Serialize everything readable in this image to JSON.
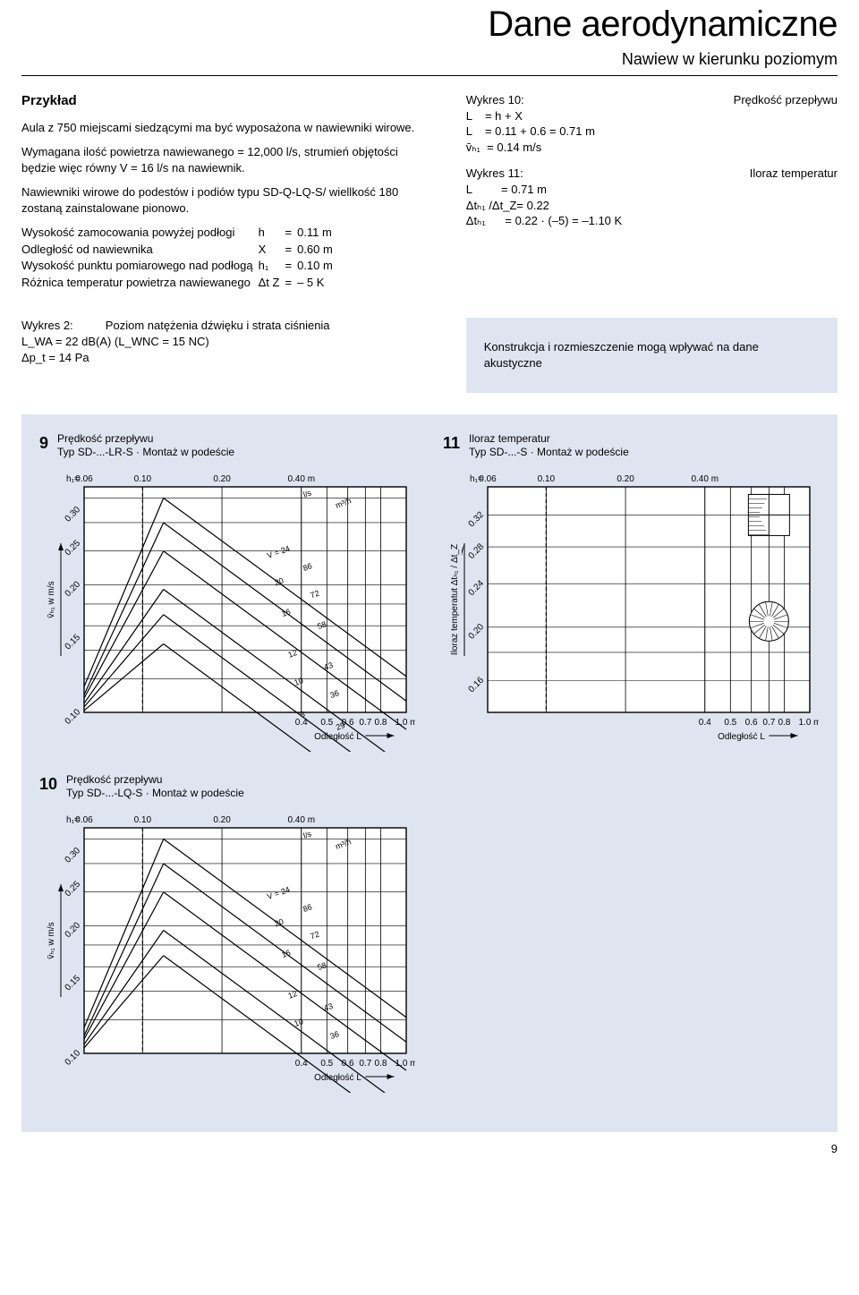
{
  "header": {
    "title": "Dane aerodynamiczne",
    "subtitle": "Nawiew w kierunku poziomym"
  },
  "example": {
    "heading": "Przykład",
    "p1": "Aula z 750 miejscami siedzącymi ma być wyposażona w nawiewniki wirowe.",
    "p2": "Wymagana ilość powietrza nawiewanego = 12,000 l/s, strumień objętości będzie więc równy V = 16 l/s na nawiewnik.",
    "p3": "Nawiewniki wirowe do podestów i podiów typu SD-Q-LQ-S/ wiellkość 180 zostaną zainstalowane pionowo.",
    "params": [
      {
        "label": "Wysokość zamocowania powyżej podłogi",
        "sym": "h",
        "val": "0.11 m"
      },
      {
        "label": "Odległość od nawiewnika",
        "sym": "X",
        "val": "0.60 m"
      },
      {
        "label": "Wysokość punktu pomiarowego nad podłogą",
        "sym": "h₁",
        "val": "0.10 m"
      },
      {
        "label": "Różnica temperatur powietrza nawiewanego",
        "sym": "Δt Z",
        "val": "– 5 K"
      }
    ]
  },
  "right": {
    "block1": {
      "head": "Wykres 10:",
      "tag": "Prędkość przepływu",
      "lines": [
        "L    = h + X",
        "L    = 0.11 + 0.6 = 0.71 m",
        "v̄ₕ₁  = 0.14 m/s"
      ]
    },
    "block2": {
      "head": "Wykres 11:",
      "tag": "Iloraz temperatur",
      "lines": [
        "L         = 0.71 m",
        "Δtₕ₁ /Δt_Z= 0.22",
        "Δtₕ₁      = 0.22 · (–5) = –1.10 K"
      ]
    }
  },
  "results2": {
    "left_head": "Wykres 2:",
    "left_text": "Poziom natężenia dźwięku i strata ciśnienia",
    "left_l1": "L_WA = 22 dB(A)  (L_WNC = 15 NC)",
    "left_l2": "Δp_t = 14 Pa",
    "note": "Konstrukcja i rozmieszczenie mogą wpływać na dane akustyczne"
  },
  "charts": {
    "h1_label": "h₁=",
    "h1_ticks": [
      "0.06",
      "0.10",
      "0.20",
      "0.40 m"
    ],
    "x_ticks": [
      "0.4",
      "0.5",
      "0.6",
      "0.7",
      "0.8",
      "1.0 m"
    ],
    "x_label": "Odległość L",
    "y_left_label": "v̄ₕ₁ w m/s",
    "y_left_ticks": [
      "0.10",
      "0.15",
      "0.20",
      "0.25",
      "0.30"
    ],
    "y_right_label": "Iloraz temperatut Δtₕ₁ / Δt_Z",
    "y_right_ticks": [
      "0.16",
      "0.20",
      "0.24",
      "0.28",
      "0.32"
    ],
    "flow_unit_top": "l/s",
    "flow_unit_bot": "m³/h",
    "flows_ls": [
      "V = 24",
      "20",
      "16",
      "12",
      "10",
      "8"
    ],
    "flows_m3h": [
      "86",
      "72",
      "58",
      "43",
      "36",
      "29"
    ],
    "flows_m3h_nolow": [
      "86",
      "72",
      "58",
      "43",
      "36"
    ],
    "chart9": {
      "num": "9",
      "title_l1": "Prędkość przepływu",
      "title_l2": "Typ SD-...-LR-S · Montaż w podeście"
    },
    "chart10": {
      "num": "10",
      "title_l1": "Prędkość przepływu",
      "title_l2": "Typ SD-...-LQ-S · Montaż w podeście"
    },
    "chart11": {
      "num": "11",
      "title_l1": "Iloraz temperatur",
      "title_l2": "Typ SD-...-S · Montaż w podeście"
    },
    "style": {
      "bg": "#dfe5f0",
      "stroke": "#000000",
      "dash": "4 3",
      "grid_width": 1,
      "line_width": 1.2,
      "font_size": 10
    }
  },
  "page_number": "9"
}
